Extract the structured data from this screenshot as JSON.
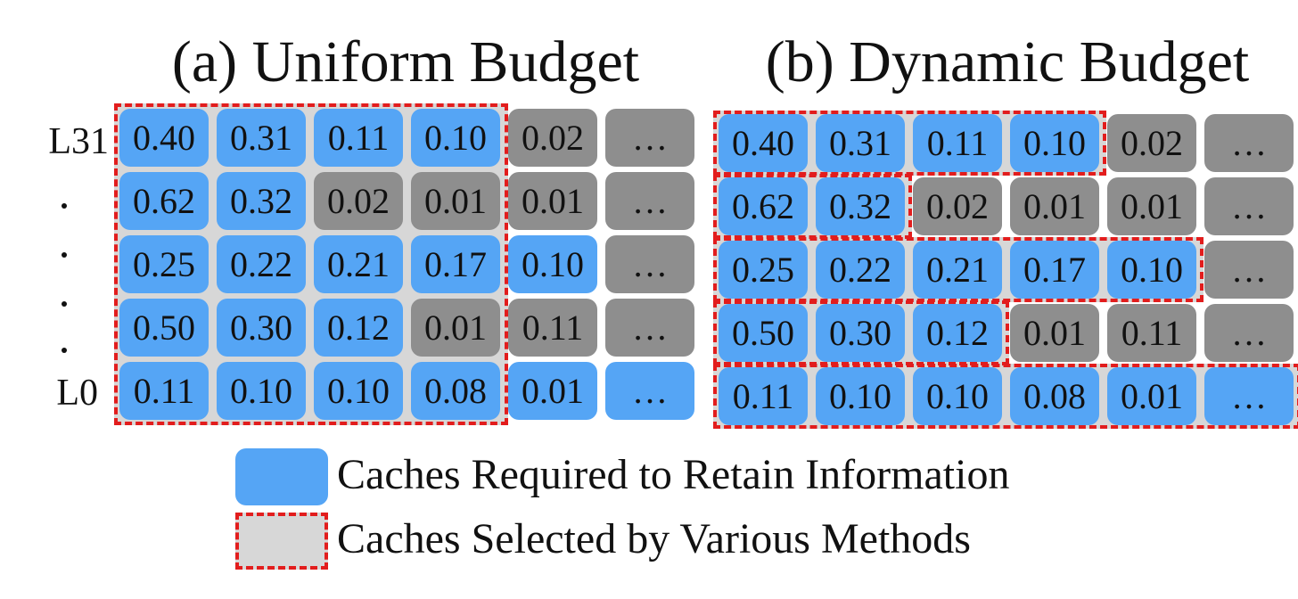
{
  "panel_a": {
    "title": "(a) Uniform Budget",
    "rows": [
      {
        "label": "L31",
        "cells": [
          {
            "v": "0.40",
            "c": "blue"
          },
          {
            "v": "0.31",
            "c": "blue"
          },
          {
            "v": "0.11",
            "c": "blue"
          },
          {
            "v": "0.10",
            "c": "blue"
          },
          {
            "v": "0.02",
            "c": "gray"
          },
          {
            "v": "…",
            "c": "gray"
          }
        ]
      },
      {
        "label": "",
        "cells": [
          {
            "v": "0.62",
            "c": "blue"
          },
          {
            "v": "0.32",
            "c": "blue"
          },
          {
            "v": "0.02",
            "c": "gray"
          },
          {
            "v": "0.01",
            "c": "gray"
          },
          {
            "v": "0.01",
            "c": "gray"
          },
          {
            "v": "…",
            "c": "gray"
          }
        ]
      },
      {
        "label": "",
        "cells": [
          {
            "v": "0.25",
            "c": "blue"
          },
          {
            "v": "0.22",
            "c": "blue"
          },
          {
            "v": "0.21",
            "c": "blue"
          },
          {
            "v": "0.17",
            "c": "blue"
          },
          {
            "v": "0.10",
            "c": "blue"
          },
          {
            "v": "…",
            "c": "gray"
          }
        ]
      },
      {
        "label": "",
        "cells": [
          {
            "v": "0.50",
            "c": "blue"
          },
          {
            "v": "0.30",
            "c": "blue"
          },
          {
            "v": "0.12",
            "c": "blue"
          },
          {
            "v": "0.01",
            "c": "gray"
          },
          {
            "v": "0.11",
            "c": "gray"
          },
          {
            "v": "…",
            "c": "gray"
          }
        ]
      },
      {
        "label": "L0",
        "cells": [
          {
            "v": "0.11",
            "c": "blue"
          },
          {
            "v": "0.10",
            "c": "blue"
          },
          {
            "v": "0.10",
            "c": "blue"
          },
          {
            "v": "0.08",
            "c": "blue"
          },
          {
            "v": "0.01",
            "c": "blue"
          },
          {
            "v": "…",
            "c": "blue"
          }
        ]
      }
    ],
    "selected_per_row": [
      4,
      4,
      4,
      4,
      4
    ]
  },
  "panel_b": {
    "title": "(b) Dynamic Budget",
    "rows": [
      {
        "cells": [
          {
            "v": "0.40",
            "c": "blue"
          },
          {
            "v": "0.31",
            "c": "blue"
          },
          {
            "v": "0.11",
            "c": "blue"
          },
          {
            "v": "0.10",
            "c": "blue"
          },
          {
            "v": "0.02",
            "c": "gray"
          },
          {
            "v": "…",
            "c": "gray"
          }
        ]
      },
      {
        "cells": [
          {
            "v": "0.62",
            "c": "blue"
          },
          {
            "v": "0.32",
            "c": "blue"
          },
          {
            "v": "0.02",
            "c": "gray"
          },
          {
            "v": "0.01",
            "c": "gray"
          },
          {
            "v": "0.01",
            "c": "gray"
          },
          {
            "v": "…",
            "c": "gray"
          }
        ]
      },
      {
        "cells": [
          {
            "v": "0.25",
            "c": "blue"
          },
          {
            "v": "0.22",
            "c": "blue"
          },
          {
            "v": "0.21",
            "c": "blue"
          },
          {
            "v": "0.17",
            "c": "blue"
          },
          {
            "v": "0.10",
            "c": "blue"
          },
          {
            "v": "…",
            "c": "gray"
          }
        ]
      },
      {
        "cells": [
          {
            "v": "0.50",
            "c": "blue"
          },
          {
            "v": "0.30",
            "c": "blue"
          },
          {
            "v": "0.12",
            "c": "blue"
          },
          {
            "v": "0.01",
            "c": "gray"
          },
          {
            "v": "0.11",
            "c": "gray"
          },
          {
            "v": "…",
            "c": "gray"
          }
        ]
      },
      {
        "cells": [
          {
            "v": "0.11",
            "c": "blue"
          },
          {
            "v": "0.10",
            "c": "blue"
          },
          {
            "v": "0.10",
            "c": "blue"
          },
          {
            "v": "0.08",
            "c": "blue"
          },
          {
            "v": "0.01",
            "c": "blue"
          },
          {
            "v": "…",
            "c": "blue"
          }
        ]
      }
    ],
    "selected_per_row": [
      4,
      2,
      5,
      3,
      6
    ]
  },
  "legend": {
    "blue_label": "Caches Required to Retain Information",
    "selected_label": "Caches Selected by Various Methods"
  },
  "colors": {
    "required": "#55a5f5",
    "not_required": "#8e8e8e",
    "selected_fill": "#d7d7d7",
    "selected_border": "#e21d1d"
  }
}
